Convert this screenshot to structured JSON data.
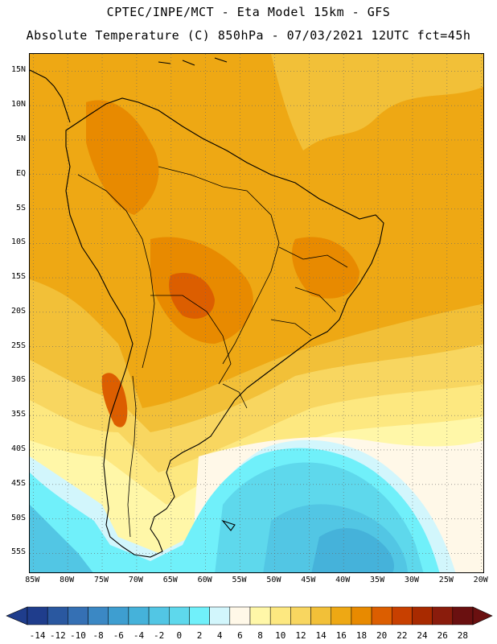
{
  "header": {
    "title_line1": "CPTEC/INPE/MCT -  Eta Model 15km - GFS",
    "title_line2": "Absolute Temperature (C) 850hPa - 07/03/2021 12UTC fct=45h"
  },
  "map": {
    "lat_labels": [
      "15N",
      "10N",
      "5N",
      "EQ",
      "5S",
      "10S",
      "15S",
      "20S",
      "25S",
      "30S",
      "35S",
      "40S",
      "45S",
      "50S",
      "55S"
    ],
    "lat_values": [
      15,
      10,
      5,
      0,
      -5,
      -10,
      -15,
      -20,
      -25,
      -30,
      -35,
      -40,
      -45,
      -50,
      -55
    ],
    "lon_labels": [
      "85W",
      "80W",
      "75W",
      "70W",
      "65W",
      "60W",
      "55W",
      "50W",
      "45W",
      "40W",
      "35W",
      "30W",
      "25W",
      "20W"
    ],
    "lon_values": [
      -85,
      -80,
      -75,
      -70,
      -65,
      -60,
      -55,
      -50,
      -45,
      -40,
      -35,
      -30,
      -25,
      -20
    ],
    "lon_range": [
      -85.5,
      -19.5
    ],
    "lat_range": [
      -58,
      17.5
    ]
  },
  "colorbar": {
    "labels": [
      "-14",
      "-12",
      "-10",
      "-8",
      "-6",
      "-4",
      "-2",
      "0",
      "2",
      "4",
      "6",
      "8",
      "10",
      "12",
      "14",
      "16",
      "18",
      "20",
      "22",
      "24",
      "26",
      "28"
    ],
    "colors": [
      "#1f3d8c",
      "#2a58a0",
      "#3570b4",
      "#3b88c4",
      "#3e9ed0",
      "#45b2da",
      "#52c6e4",
      "#5ed8ec",
      "#70f0fa",
      "#d2f6fc",
      "#fff8e8",
      "#fff7a8",
      "#fde880",
      "#f8d660",
      "#f2c038",
      "#eea814",
      "#e88a00",
      "#dc5e00",
      "#c84000",
      "#a82a00",
      "#8a1c0c",
      "#6a1010"
    ]
  }
}
